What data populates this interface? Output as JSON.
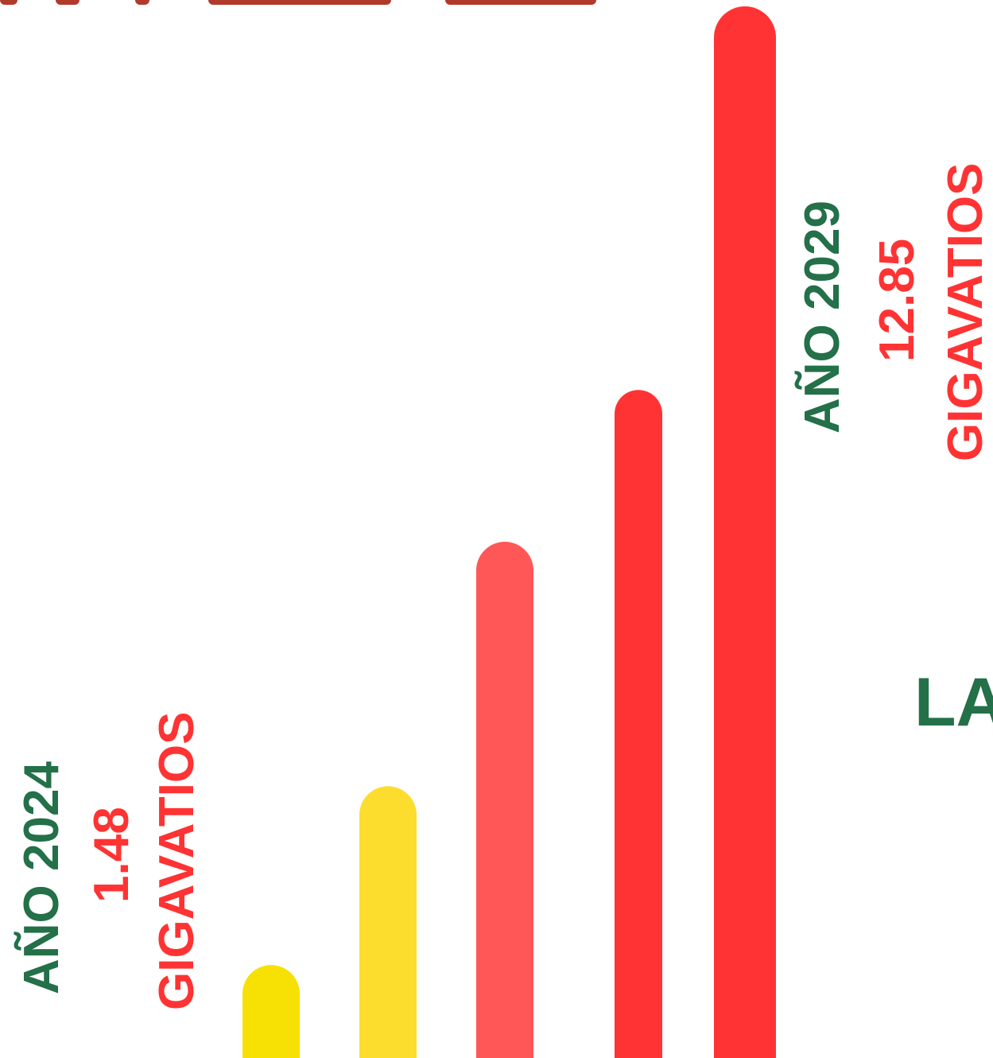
{
  "chart_data": {
    "type": "bar",
    "categories": [
      "",
      "",
      "",
      "",
      ""
    ],
    "values": [
      1.48,
      3.6,
      6.5,
      8.3,
      12.85
    ],
    "colors": [
      "#f7e004",
      "#fcdd2e",
      "#ff5757",
      "#ff3333",
      "#ff3333"
    ],
    "rounded_bars": true,
    "grid": false,
    "legend": "none",
    "ylim": [
      0,
      12.85
    ],
    "annotations": {
      "start": {
        "year": "AÑO 2024",
        "value": "1.48",
        "unit": "GIGAVATIOS"
      },
      "end": {
        "year": "AÑO 2029",
        "value": "12.85",
        "unit": "GIGAVATIOS"
      }
    }
  },
  "cut_text": "LA",
  "colors": {
    "label_green": "#237049",
    "label_red": "#ff3333",
    "background": "#ffffff"
  }
}
